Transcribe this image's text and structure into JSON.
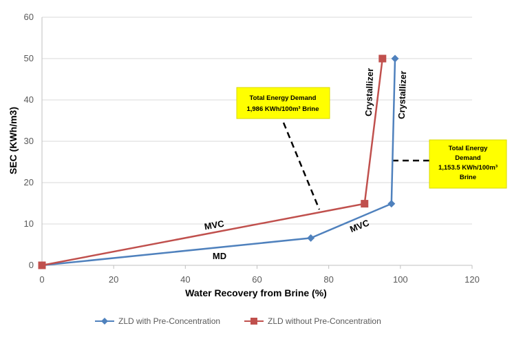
{
  "chart_data": {
    "type": "line",
    "title": "",
    "xlabel": "Water Recovery from Brine (%)",
    "ylabel": "SEC (KWh/m3)",
    "xlim": [
      0,
      120
    ],
    "ylim": [
      0,
      60
    ],
    "x_ticks": [
      0,
      20,
      40,
      60,
      80,
      100,
      120
    ],
    "y_ticks": [
      0,
      10,
      20,
      30,
      40,
      50,
      60
    ],
    "x_tick_labels": [
      "0",
      "20",
      "40",
      "60",
      "80",
      "100",
      "120"
    ],
    "y_tick_labels": [
      "0",
      "10",
      "20",
      "30",
      "40",
      "50",
      "60"
    ],
    "grid": "horizontal",
    "legend": "bottom",
    "series": [
      {
        "name": "ZLD with Pre-Concentration",
        "color": "#4f81bd",
        "marker": "diamond",
        "points": [
          [
            0,
            0
          ],
          [
            75,
            6.6
          ],
          [
            97.5,
            14.9
          ],
          [
            98.5,
            50
          ]
        ]
      },
      {
        "name": "ZLD without Pre-Concentration",
        "color": "#c0504d",
        "marker": "square",
        "points": [
          [
            0,
            0
          ],
          [
            90,
            14.9
          ],
          [
            95,
            50
          ]
        ]
      }
    ],
    "annotations": {
      "mvc_upper": "MVC",
      "md": "MD",
      "mvc_lower": "MVC",
      "crystallizer_red": "Crystallizer",
      "crystallizer_blue": "Crystallizer"
    },
    "callouts": [
      {
        "lines": [
          "Total Energy Demand",
          "1,986 KWh/100m³ Brine"
        ],
        "fill": "#ffff00"
      },
      {
        "lines": [
          "Total Energy",
          "Demand",
          "1,153.5 KWh/100m³",
          "Brine"
        ],
        "fill": "#ffff00"
      }
    ]
  }
}
